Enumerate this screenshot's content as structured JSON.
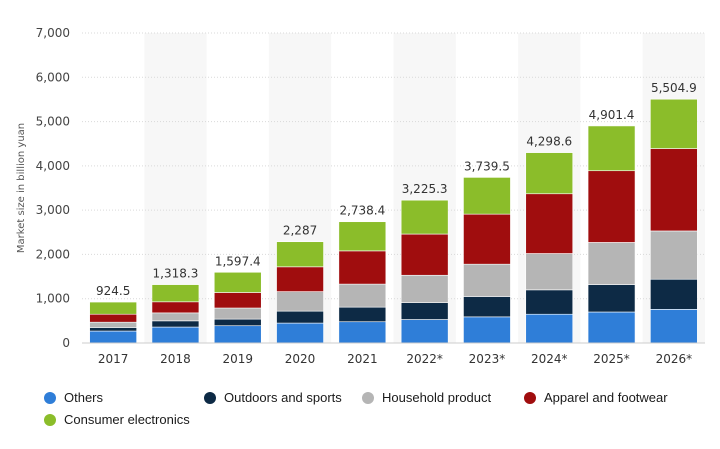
{
  "chart_data": {
    "type": "bar",
    "stacked": true,
    "title": "",
    "xlabel": "",
    "ylabel": "Market size in billion yuan",
    "ylim": [
      0,
      7000
    ],
    "yticks": [
      0,
      1000,
      2000,
      3000,
      4000,
      5000,
      6000,
      7000
    ],
    "ytick_labels": [
      "0",
      "1,000",
      "2,000",
      "3,000",
      "4,000",
      "5,000",
      "6,000",
      "7,000"
    ],
    "categories": [
      "2017",
      "2018",
      "2019",
      "2020",
      "2021",
      "2022*",
      "2023*",
      "2024*",
      "2025*",
      "2026*"
    ],
    "totals": [
      924.5,
      1318.3,
      1597.4,
      2287,
      2738.4,
      3225.3,
      3739.5,
      4298.6,
      4901.4,
      5504.9
    ],
    "total_labels": [
      "924.5",
      "1,318.3",
      "1,597.4",
      "2,287",
      "2,738.4",
      "3,225.3",
      "3,739.5",
      "4,298.6",
      "4,901.4",
      "5,504.9"
    ],
    "series": [
      {
        "name": "Others",
        "color": "#2f7ed8",
        "values": [
          270,
          360,
          390,
          450,
          480,
          530,
          590,
          650,
          700,
          760
        ]
      },
      {
        "name": "Outdoors and sports",
        "color": "#0d2a45",
        "values": [
          80,
          140,
          150,
          270,
          330,
          380,
          460,
          550,
          620,
          680
        ]
      },
      {
        "name": "Household product",
        "color": "#b5b5b5",
        "values": [
          120,
          180,
          250,
          440,
          520,
          620,
          730,
          820,
          950,
          1090
        ]
      },
      {
        "name": "Apparel and footwear",
        "color": "#a00d0e",
        "values": [
          180,
          250,
          350,
          560,
          750,
          930,
          1130,
          1350,
          1620,
          1860
        ]
      },
      {
        "name": "Consumer electronics",
        "color": "#8bbd2a",
        "values": [
          274.5,
          388.3,
          457.4,
          567,
          658.4,
          765.3,
          829.5,
          928.6,
          1011.4,
          1114.9
        ]
      }
    ],
    "legend_position": "bottom",
    "grid": true
  }
}
